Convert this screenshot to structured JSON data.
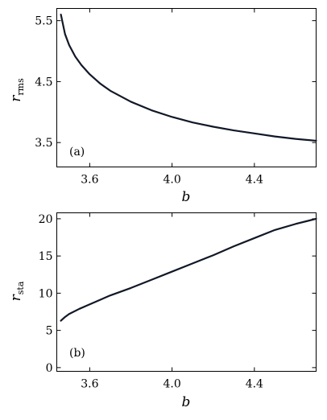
{
  "chart_data": [
    {
      "type": "line",
      "panel_label": "(a)",
      "xlabel": "b",
      "ylabel": {
        "main": "r",
        "sub": "rms"
      },
      "xlim": [
        3.44,
        4.7
      ],
      "ylim": [
        3.1,
        5.7
      ],
      "xticks": [
        "3.6",
        "4.0",
        "4.4"
      ],
      "yticks": [
        "3.5",
        "4.5",
        "5.5"
      ],
      "legend": "none",
      "grid": false,
      "color": "#111827",
      "series": [
        {
          "x": [
            3.46,
            3.48,
            3.5,
            3.53,
            3.56,
            3.6,
            3.65,
            3.7,
            3.8,
            3.9,
            4.0,
            4.1,
            4.2,
            4.3,
            4.4,
            4.5,
            4.6,
            4.7
          ],
          "y": [
            5.6,
            5.28,
            5.1,
            4.91,
            4.77,
            4.62,
            4.47,
            4.35,
            4.17,
            4.03,
            3.92,
            3.83,
            3.76,
            3.7,
            3.65,
            3.6,
            3.56,
            3.53
          ]
        }
      ]
    },
    {
      "type": "line",
      "panel_label": "(b)",
      "xlabel": "b",
      "ylabel": {
        "main": "r",
        "sub": "sta"
      },
      "xlim": [
        3.44,
        4.7
      ],
      "ylim": [
        -0.5,
        20.8
      ],
      "xticks": [
        "3.6",
        "4.0",
        "4.4"
      ],
      "yticks": [
        "0",
        "5",
        "10",
        "15",
        "20"
      ],
      "legend": "none",
      "grid": false,
      "color": "#111827",
      "series": [
        {
          "x": [
            3.46,
            3.48,
            3.5,
            3.55,
            3.6,
            3.7,
            3.8,
            3.9,
            4.0,
            4.1,
            4.2,
            4.3,
            4.4,
            4.5,
            4.6,
            4.7
          ],
          "y": [
            6.3,
            6.8,
            7.2,
            7.9,
            8.5,
            9.7,
            10.7,
            11.8,
            12.9,
            14.0,
            15.1,
            16.3,
            17.4,
            18.5,
            19.3,
            20.0
          ]
        }
      ]
    }
  ]
}
